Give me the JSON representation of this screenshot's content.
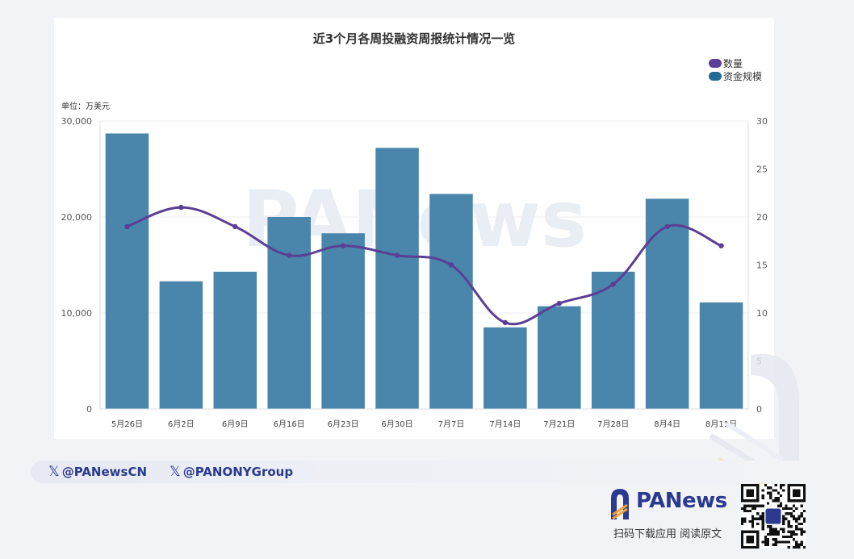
{
  "chart_data": {
    "type": "bar",
    "title": "近3个月各周投融资周报统计情况一览",
    "unit_label": "单位：万美元",
    "categories": [
      "5月26日",
      "6月2日",
      "6月9日",
      "6月16日",
      "6月23日",
      "6月30日",
      "7月7日",
      "7月14日",
      "7月21日",
      "7月28日",
      "8月4日",
      "8月11日"
    ],
    "y_left": {
      "ylim": [
        0,
        30000
      ],
      "ticks": [
        "0",
        "10,000",
        "20,000",
        "30,000"
      ],
      "tick_values": [
        0,
        10000,
        20000,
        30000
      ]
    },
    "y_right": {
      "ylim": [
        0,
        30
      ],
      "ticks": [
        "0",
        "5",
        "10",
        "15",
        "20",
        "25",
        "30"
      ],
      "tick_values": [
        0,
        5,
        10,
        15,
        20,
        25,
        30
      ]
    },
    "series": [
      {
        "name": "资金规模",
        "type": "bar",
        "axis": "left",
        "color": "#4a86ab",
        "values": [
          28700,
          13300,
          14300,
          20000,
          18300,
          27200,
          22400,
          8500,
          10700,
          14300,
          21900,
          11100
        ]
      },
      {
        "name": "数量",
        "type": "line",
        "axis": "right",
        "color": "#5b3f94",
        "values": [
          19,
          21,
          19,
          16,
          17,
          16,
          15,
          9,
          11,
          13,
          19,
          17
        ]
      }
    ],
    "legend": {
      "position": "top-right",
      "items": [
        {
          "label": "数量",
          "color": "#5b3f94"
        },
        {
          "label": "资金规模",
          "color": "#236a92"
        }
      ]
    },
    "watermark": "PANews"
  },
  "footer": {
    "social_1": "@PANewsCN",
    "social_2": "@PANONYGroup",
    "x_glyph": "𝕏",
    "brand_name": "PANews",
    "slogan": "扫码下载应用  阅读原文"
  }
}
